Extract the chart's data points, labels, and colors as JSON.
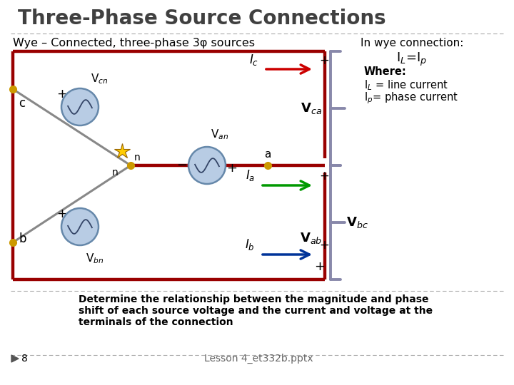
{
  "title": "Three-Phase Source Connections",
  "subtitle": "Wye – Connected, three-phase 3φ sources",
  "right_title": "In wye connection:",
  "il_eq": "I$_L$=I$_p$",
  "where_text": "Where:",
  "il_text": "I$_L$ = line current",
  "ip_text": "I$_p$= phase current",
  "vca_text": "V$_{ca}$",
  "vbc_text": "V$_{bc}$",
  "vab_text": "V$_{ab}$",
  "vcn_text": "V$_{cn}$",
  "van_text": "V$_{an}$",
  "vbn_text": "V$_{bn}$",
  "determine_text": "Determine the relationship between the magnitude and phase\nshift of each source voltage and the current and voltage at the\nterminals of the connection",
  "slide_num": "8",
  "lesson_text": "Lesson 4_et332b.pptx",
  "bg_color": "#ffffff",
  "title_color": "#404040",
  "circuit_line_color": "#990000",
  "arrow_red": "#cc0000",
  "arrow_green": "#009900",
  "arrow_blue": "#003399",
  "bracket_color": "#8888aa",
  "wire_color": "#888888",
  "node_color": "#cc9900",
  "source_fill": "#b8cce4",
  "source_border": "#6688aa"
}
